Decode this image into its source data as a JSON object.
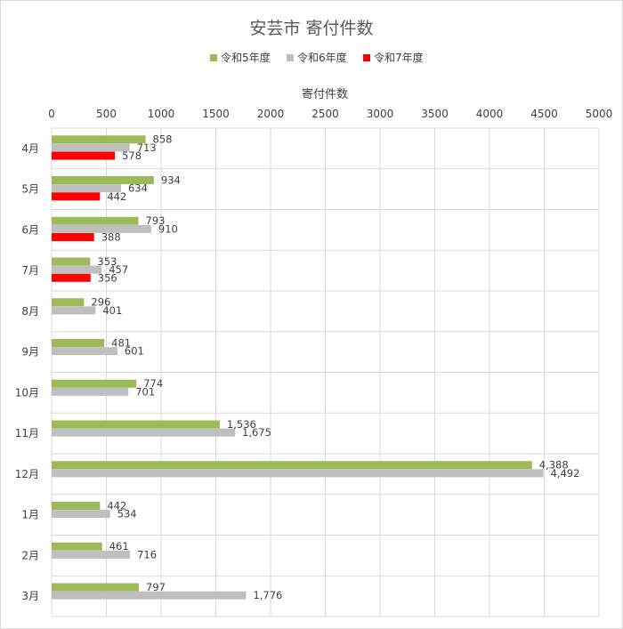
{
  "chart_data": {
    "type": "bar",
    "orientation": "horizontal",
    "title": "安芸市 寄付件数",
    "xlabel": "寄付件数",
    "ylabel": "",
    "xlim": [
      0,
      5000
    ],
    "x_ticks": [
      "0",
      "500",
      "1000",
      "1500",
      "2000",
      "2500",
      "3000",
      "3500",
      "4000",
      "4500",
      "5000"
    ],
    "grid": true,
    "legend_position": "top",
    "categories": [
      "4月",
      "5月",
      "6月",
      "7月",
      "8月",
      "9月",
      "10月",
      "11月",
      "12月",
      "1月",
      "2月",
      "3月"
    ],
    "series": [
      {
        "name": "令和5年度",
        "color": "#9BBB59",
        "values": [
          858,
          934,
          793,
          353,
          296,
          481,
          774,
          1536,
          4388,
          442,
          461,
          797
        ],
        "labels": [
          "858",
          "934",
          "793",
          "353",
          "296",
          "481",
          "774",
          "1,536",
          "4,388",
          "442",
          "461",
          "797"
        ]
      },
      {
        "name": "令和6年度",
        "color": "#BFBFBF",
        "values": [
          713,
          634,
          910,
          457,
          401,
          601,
          701,
          1675,
          4492,
          534,
          716,
          1776
        ],
        "labels": [
          "713",
          "634",
          "910",
          "457",
          "401",
          "601",
          "701",
          "1,675",
          "4,492",
          "534",
          "716",
          "1,776"
        ]
      },
      {
        "name": "令和7年度",
        "color": "#FF0000",
        "values": [
          578,
          442,
          388,
          356,
          null,
          null,
          null,
          null,
          null,
          null,
          null,
          null
        ],
        "labels": [
          "578",
          "442",
          "388",
          "356",
          null,
          null,
          null,
          null,
          null,
          null,
          null,
          null
        ]
      }
    ]
  }
}
